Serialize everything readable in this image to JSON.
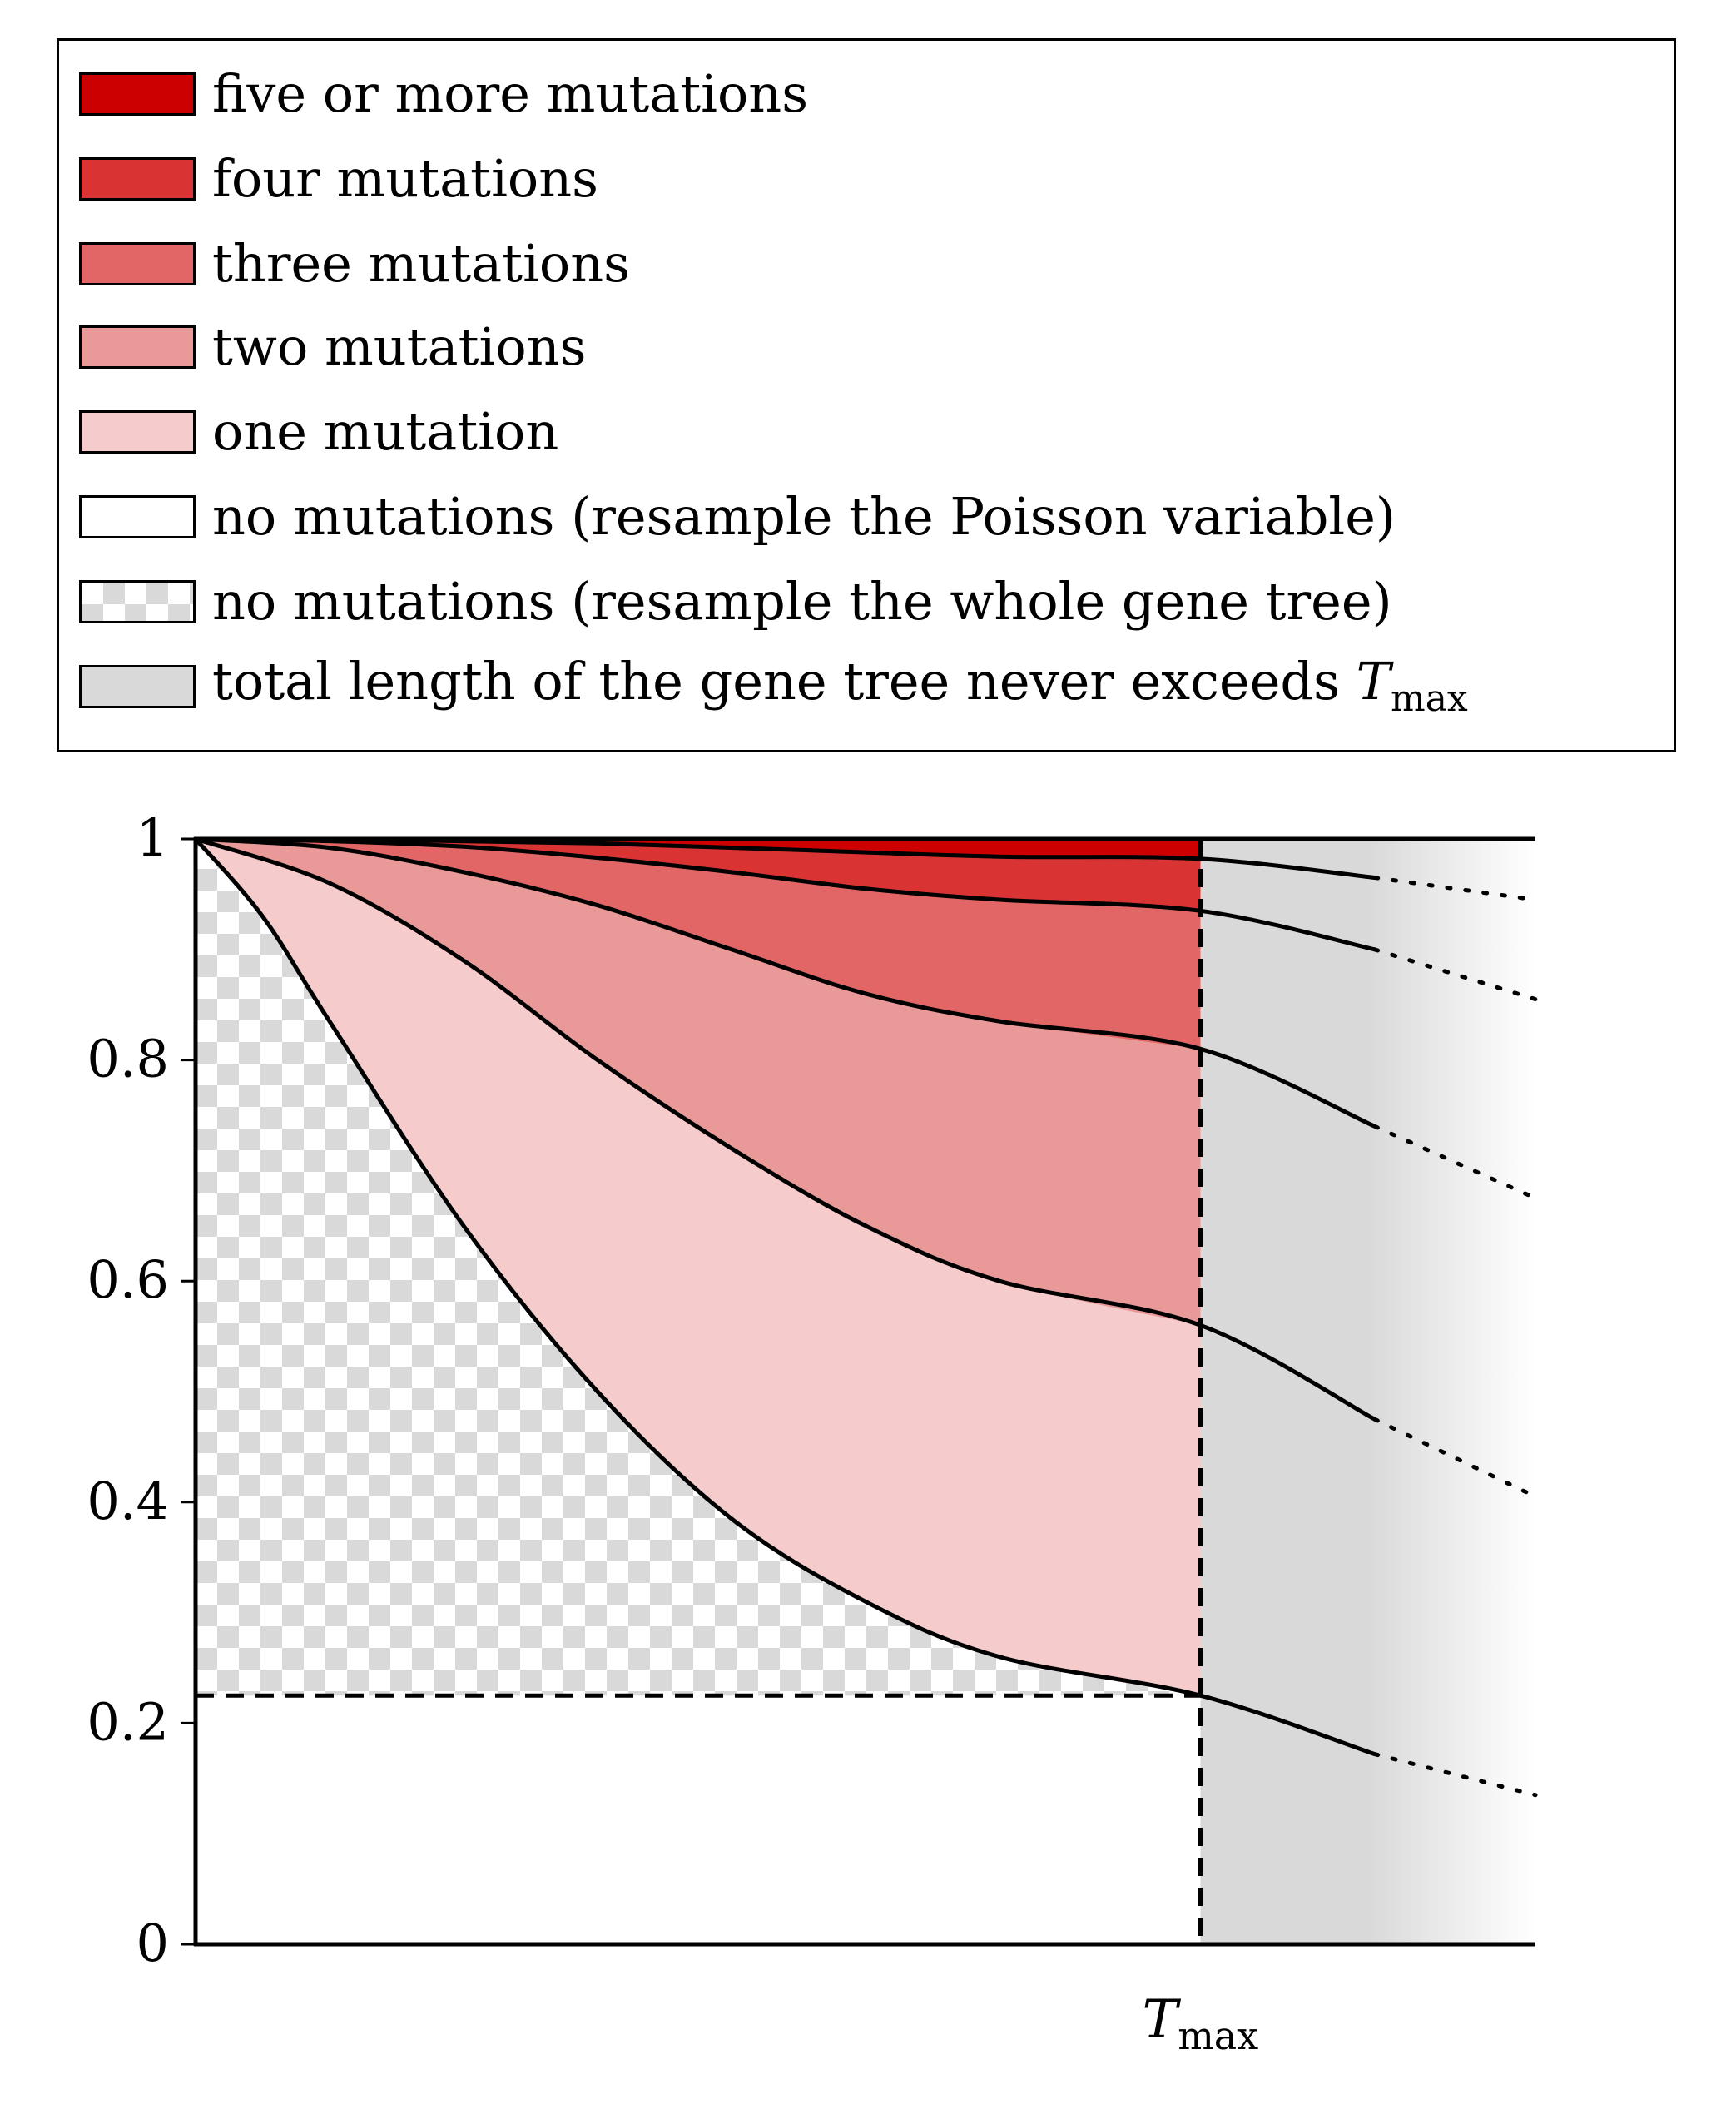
{
  "legend": {
    "items": [
      {
        "label": "five or more mutations",
        "fill": "#cc0000",
        "pattern": "solid"
      },
      {
        "label": "four mutations",
        "fill": "#d93333",
        "pattern": "solid"
      },
      {
        "label": "three mutations",
        "fill": "#e26666",
        "pattern": "solid"
      },
      {
        "label": "two mutations",
        "fill": "#ea9999",
        "pattern": "solid"
      },
      {
        "label": "one mutation",
        "fill": "#f5cbcc",
        "pattern": "solid"
      },
      {
        "label": "no mutations (resample the Poisson variable)",
        "fill": "#ffffff",
        "pattern": "solid"
      },
      {
        "label": "no mutations (resample the whole gene tree)",
        "fill": "#d9d9d9",
        "pattern": "checker"
      },
      {
        "label_prefix": "total length of the gene tree never exceeds ",
        "label_var": "T",
        "label_sub": "max",
        "fill": "#d9d9d9",
        "pattern": "solid"
      }
    ]
  },
  "chart_data": {
    "type": "area",
    "ylim": [
      0,
      1
    ],
    "yticks": [
      "0",
      "0.2",
      "0.4",
      "0.6",
      "0.8",
      "1"
    ],
    "ytick_values": [
      0,
      0.2,
      0.4,
      0.6,
      0.8,
      1
    ],
    "xlim": [
      0,
      1
    ],
    "xtick_labels": [
      {
        "var": "T",
        "sub": "max",
        "x": 0.75
      }
    ],
    "tmax": 0.75,
    "curves": [
      {
        "k": 0,
        "points": [
          [
            0,
            1
          ],
          [
            0.05,
            0.93
          ],
          [
            0.1,
            0.835
          ],
          [
            0.2,
            0.65
          ],
          [
            0.3,
            0.5
          ],
          [
            0.4,
            0.385
          ],
          [
            0.5,
            0.31
          ],
          [
            0.6,
            0.26
          ],
          [
            0.75,
            0.225
          ],
          [
            0.88,
            0.172
          ]
        ]
      },
      {
        "k": 1,
        "points": [
          [
            0,
            1
          ],
          [
            0.1,
            0.96
          ],
          [
            0.2,
            0.89
          ],
          [
            0.3,
            0.8
          ],
          [
            0.4,
            0.72
          ],
          [
            0.5,
            0.65
          ],
          [
            0.6,
            0.6
          ],
          [
            0.75,
            0.56
          ],
          [
            0.88,
            0.475
          ]
        ]
      },
      {
        "k": 2,
        "points": [
          [
            0,
            1
          ],
          [
            0.1,
            0.992
          ],
          [
            0.2,
            0.97
          ],
          [
            0.3,
            0.94
          ],
          [
            0.4,
            0.9
          ],
          [
            0.5,
            0.86
          ],
          [
            0.6,
            0.835
          ],
          [
            0.75,
            0.81
          ],
          [
            0.88,
            0.74
          ]
        ]
      },
      {
        "k": 3,
        "points": [
          [
            0,
            1
          ],
          [
            0.1,
            0.998
          ],
          [
            0.2,
            0.993
          ],
          [
            0.3,
            0.983
          ],
          [
            0.4,
            0.97
          ],
          [
            0.5,
            0.955
          ],
          [
            0.6,
            0.945
          ],
          [
            0.75,
            0.935
          ],
          [
            0.88,
            0.9
          ]
        ]
      },
      {
        "k": 4,
        "points": [
          [
            0,
            1
          ],
          [
            0.15,
            0.999
          ],
          [
            0.3,
            0.996
          ],
          [
            0.45,
            0.99
          ],
          [
            0.6,
            0.984
          ],
          [
            0.75,
            0.982
          ],
          [
            0.88,
            0.965
          ]
        ]
      }
    ],
    "dotted_tails": [
      {
        "k": 0,
        "points": [
          [
            0.88,
            0.172
          ],
          [
            1.0,
            0.135
          ]
        ]
      },
      {
        "k": 1,
        "points": [
          [
            0.88,
            0.475
          ],
          [
            1.0,
            0.405
          ]
        ]
      },
      {
        "k": 2,
        "points": [
          [
            0.88,
            0.74
          ],
          [
            1.0,
            0.675
          ]
        ]
      },
      {
        "k": 3,
        "points": [
          [
            0.88,
            0.9
          ],
          [
            1.0,
            0.855
          ]
        ]
      },
      {
        "k": 4,
        "points": [
          [
            0.88,
            0.965
          ],
          [
            1.0,
            0.945
          ]
        ]
      }
    ],
    "threshold_y": 0.225,
    "grid": false,
    "legend_position": "top"
  }
}
